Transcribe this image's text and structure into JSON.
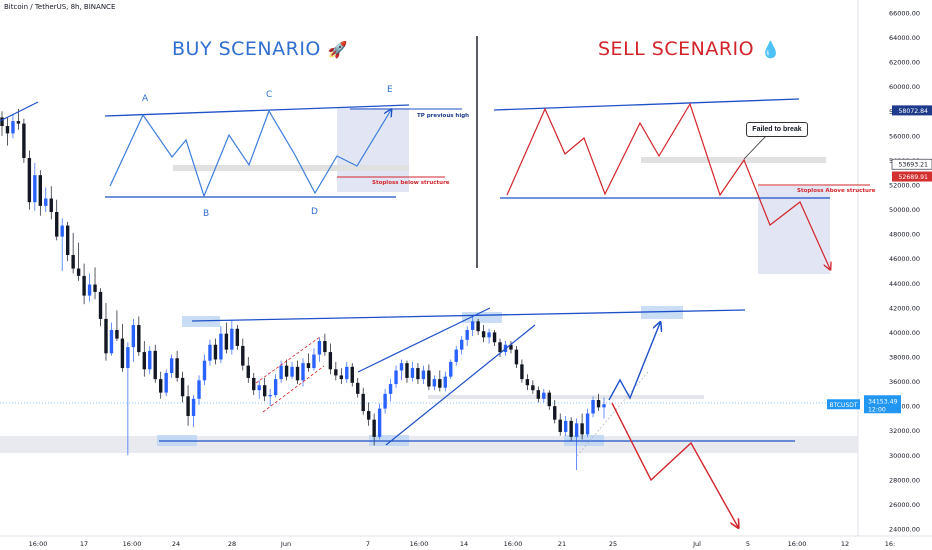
{
  "header": {
    "symbol": "Bitcoin / TetherUS, 8h, BINANCE"
  },
  "buy_scenario": {
    "title": "BUY SCENARIO",
    "icon": "rocket-icon",
    "points": [
      "A",
      "B",
      "C",
      "D",
      "E"
    ],
    "tp_label": "TP previous high",
    "sl_label": "Stoploss below structure"
  },
  "sell_scenario": {
    "title": "SELL SCENARIO",
    "icon": "blood-drop-icon",
    "callout": "Failed to break",
    "sl_label": "Stoploss Above structure"
  },
  "colors": {
    "up": "#2962ff",
    "down": "#131722",
    "buy_accent": "#2f6fd0",
    "sell_accent": "#d3242b",
    "zone": "#e6e8f2"
  },
  "chart_data": {
    "type": "candlestick",
    "symbol": "BTCUSDT",
    "interval": "8h",
    "exchange": "BINANCE",
    "y_axis": {
      "ticks": [
        66000,
        64000,
        62000,
        60000,
        58000,
        56000,
        54000,
        52000,
        50000,
        48000,
        46000,
        44000,
        42000,
        40000,
        38000,
        36000,
        34000,
        32000,
        30000,
        28000,
        26000,
        24000
      ],
      "tick_labels": [
        "66000.00",
        "64000.00",
        "62000.00",
        "60000.00",
        "58000.00",
        "56000.00",
        "54000.00",
        "52000.00",
        "50000.00",
        "48000.00",
        "46000.00",
        "44000.00",
        "42000.00",
        "40000.00",
        "38000.00",
        "36000.00",
        "34000.00",
        "32000.00",
        "30000.00",
        "28000.00",
        "26000.00",
        "24000.00"
      ],
      "range": [
        23500,
        66500
      ]
    },
    "x_axis": {
      "tick_labels": [
        "16:00",
        "17",
        "16:00",
        "24",
        "28",
        "Jun",
        "7",
        "16:00",
        "14",
        "16:00",
        "21",
        "25",
        "Jul",
        "5",
        "16:00",
        "12",
        "16:"
      ]
    },
    "price_labels": [
      {
        "value": 58072.84,
        "text": "58072.84",
        "color": "#1e3a8a"
      },
      {
        "value": 53693.21,
        "text": "53693.21",
        "color": "#ffffff"
      },
      {
        "value": 52689.91,
        "text": "52689.91",
        "color": "#d32f2f"
      },
      {
        "value": 34153.49,
        "text": "34153.49",
        "sub": "12:00",
        "symbol_tag": "BTCUSDT",
        "color": "#2196f3"
      }
    ],
    "levels": {
      "support": 31000,
      "resistance_start": 41000,
      "resistance_end": 42000,
      "current_price": 34153.49
    },
    "projections": {
      "bullish": [
        34500,
        37000,
        40000
      ],
      "bearish": [
        34500,
        28000,
        31000,
        24000
      ]
    },
    "candles": [
      [
        57500,
        58000,
        56000,
        56800
      ],
      [
        56800,
        57500,
        55200,
        56200
      ],
      [
        56200,
        57800,
        55800,
        57200
      ],
      [
        57200,
        58200,
        56500,
        57000
      ],
      [
        57000,
        57400,
        53800,
        54200
      ],
      [
        54200,
        54800,
        50000,
        50600
      ],
      [
        50600,
        53800,
        49900,
        52800
      ],
      [
        52800,
        53200,
        49500,
        50300
      ],
      [
        50300,
        51800,
        49800,
        50900
      ],
      [
        50900,
        51900,
        49200,
        49800
      ],
      [
        49800,
        50800,
        47500,
        47800
      ],
      [
        47800,
        49300,
        45000,
        48700
      ],
      [
        48700,
        49000,
        45800,
        46300
      ],
      [
        46300,
        48100,
        44800,
        45200
      ],
      [
        45200,
        47300,
        44200,
        44600
      ],
      [
        44600,
        45600,
        42300,
        43000
      ],
      [
        43000,
        44800,
        42500,
        43900
      ],
      [
        43900,
        45300,
        42700,
        43300
      ],
      [
        43300,
        43600,
        40500,
        41100
      ],
      [
        41100,
        42400,
        37700,
        38300
      ],
      [
        38300,
        40800,
        38100,
        40200
      ],
      [
        40200,
        41800,
        39300,
        39500
      ],
      [
        39500,
        40700,
        36800,
        37100
      ],
      [
        37100,
        39200,
        30000,
        38800
      ],
      [
        38800,
        41100,
        37600,
        40600
      ],
      [
        40600,
        41300,
        38100,
        38400
      ],
      [
        38400,
        39300,
        36400,
        37000
      ],
      [
        37000,
        38900,
        36600,
        38500
      ],
      [
        38500,
        39000,
        35900,
        36200
      ],
      [
        36200,
        36800,
        34600,
        35100
      ],
      [
        35100,
        37000,
        34800,
        36700
      ],
      [
        36700,
        38200,
        36300,
        37900
      ],
      [
        37900,
        38500,
        36000,
        36300
      ],
      [
        36300,
        36800,
        34300,
        34800
      ],
      [
        34800,
        35700,
        32400,
        33200
      ],
      [
        33200,
        34900,
        32300,
        34600
      ],
      [
        34600,
        36500,
        34100,
        36100
      ],
      [
        36100,
        38200,
        35700,
        37700
      ],
      [
        37700,
        39400,
        37300,
        39000
      ],
      [
        39000,
        39500,
        37400,
        37800
      ],
      [
        37800,
        40500,
        37500,
        39900
      ],
      [
        39900,
        40800,
        38300,
        38600
      ],
      [
        38600,
        41000,
        38200,
        40300
      ],
      [
        40300,
        40600,
        38600,
        38900
      ],
      [
        38900,
        39500,
        36900,
        37300
      ],
      [
        37300,
        38000,
        35900,
        36300
      ],
      [
        36300,
        36700,
        34900,
        35300
      ],
      [
        35300,
        36100,
        34600,
        35700
      ],
      [
        35700,
        36300,
        34400,
        34800
      ],
      [
        34800,
        35400,
        34000,
        34900
      ],
      [
        34900,
        36600,
        34700,
        36200
      ],
      [
        36200,
        37700,
        35900,
        37300
      ],
      [
        37300,
        37800,
        36100,
        36400
      ],
      [
        36400,
        37600,
        36200,
        37200
      ],
      [
        37200,
        37700,
        35800,
        36100
      ],
      [
        36100,
        37900,
        35600,
        37500
      ],
      [
        37500,
        38300,
        36800,
        37100
      ],
      [
        37100,
        38700,
        36900,
        38200
      ],
      [
        38200,
        39600,
        37600,
        39300
      ],
      [
        39300,
        39900,
        38100,
        38400
      ],
      [
        38400,
        39100,
        36600,
        37000
      ],
      [
        37000,
        37600,
        36100,
        36500
      ],
      [
        36500,
        37100,
        35800,
        36200
      ],
      [
        36200,
        37600,
        35900,
        37200
      ],
      [
        37200,
        37500,
        35600,
        35900
      ],
      [
        35900,
        36300,
        34700,
        35000
      ],
      [
        35000,
        35500,
        33300,
        33600
      ],
      [
        33600,
        34300,
        32400,
        32900
      ],
      [
        32900,
        33400,
        30800,
        31500
      ],
      [
        31500,
        34200,
        31300,
        33800
      ],
      [
        33800,
        35400,
        33400,
        35000
      ],
      [
        35000,
        36200,
        34400,
        35800
      ],
      [
        35800,
        37300,
        35500,
        36900
      ],
      [
        36900,
        37800,
        36100,
        37500
      ],
      [
        37500,
        37700,
        35900,
        36300
      ],
      [
        36300,
        37600,
        36000,
        37100
      ],
      [
        37100,
        37500,
        35800,
        36200
      ],
      [
        36200,
        37300,
        35800,
        36900
      ],
      [
        36900,
        37400,
        35300,
        35600
      ],
      [
        35600,
        36500,
        35300,
        36200
      ],
      [
        36200,
        36900,
        35200,
        35500
      ],
      [
        35500,
        36800,
        35200,
        36400
      ],
      [
        36400,
        37800,
        36200,
        37600
      ],
      [
        37600,
        38900,
        37300,
        38600
      ],
      [
        38600,
        39700,
        38200,
        39400
      ],
      [
        39400,
        40500,
        38900,
        40200
      ],
      [
        40200,
        41300,
        39700,
        40900
      ],
      [
        40900,
        41100,
        39800,
        40100
      ],
      [
        40100,
        40600,
        39200,
        39600
      ],
      [
        39600,
        40300,
        39100,
        40000
      ],
      [
        40000,
        40200,
        38900,
        39200
      ],
      [
        39200,
        39500,
        38000,
        38400
      ],
      [
        38400,
        39300,
        38100,
        39000
      ],
      [
        39000,
        39300,
        38300,
        38600
      ],
      [
        38600,
        38900,
        37100,
        37400
      ],
      [
        37400,
        37800,
        35900,
        36200
      ],
      [
        36200,
        36600,
        35300,
        35700
      ],
      [
        35700,
        36100,
        35000,
        35300
      ],
      [
        35300,
        35600,
        34300,
        34600
      ],
      [
        34600,
        35400,
        34300,
        35100
      ],
      [
        35100,
        35300,
        33700,
        34000
      ],
      [
        34000,
        34500,
        32600,
        32900
      ],
      [
        32900,
        33400,
        31600,
        31900
      ],
      [
        31900,
        33200,
        31600,
        32800
      ],
      [
        32800,
        33100,
        31200,
        31500
      ],
      [
        31500,
        33000,
        28800,
        32600
      ],
      [
        32600,
        33400,
        31300,
        31700
      ],
      [
        31700,
        33800,
        31500,
        33400
      ],
      [
        33400,
        34800,
        33100,
        34500
      ],
      [
        34500,
        35000,
        33600,
        33900
      ],
      [
        33900,
        34700,
        33000,
        34153.49
      ]
    ]
  }
}
